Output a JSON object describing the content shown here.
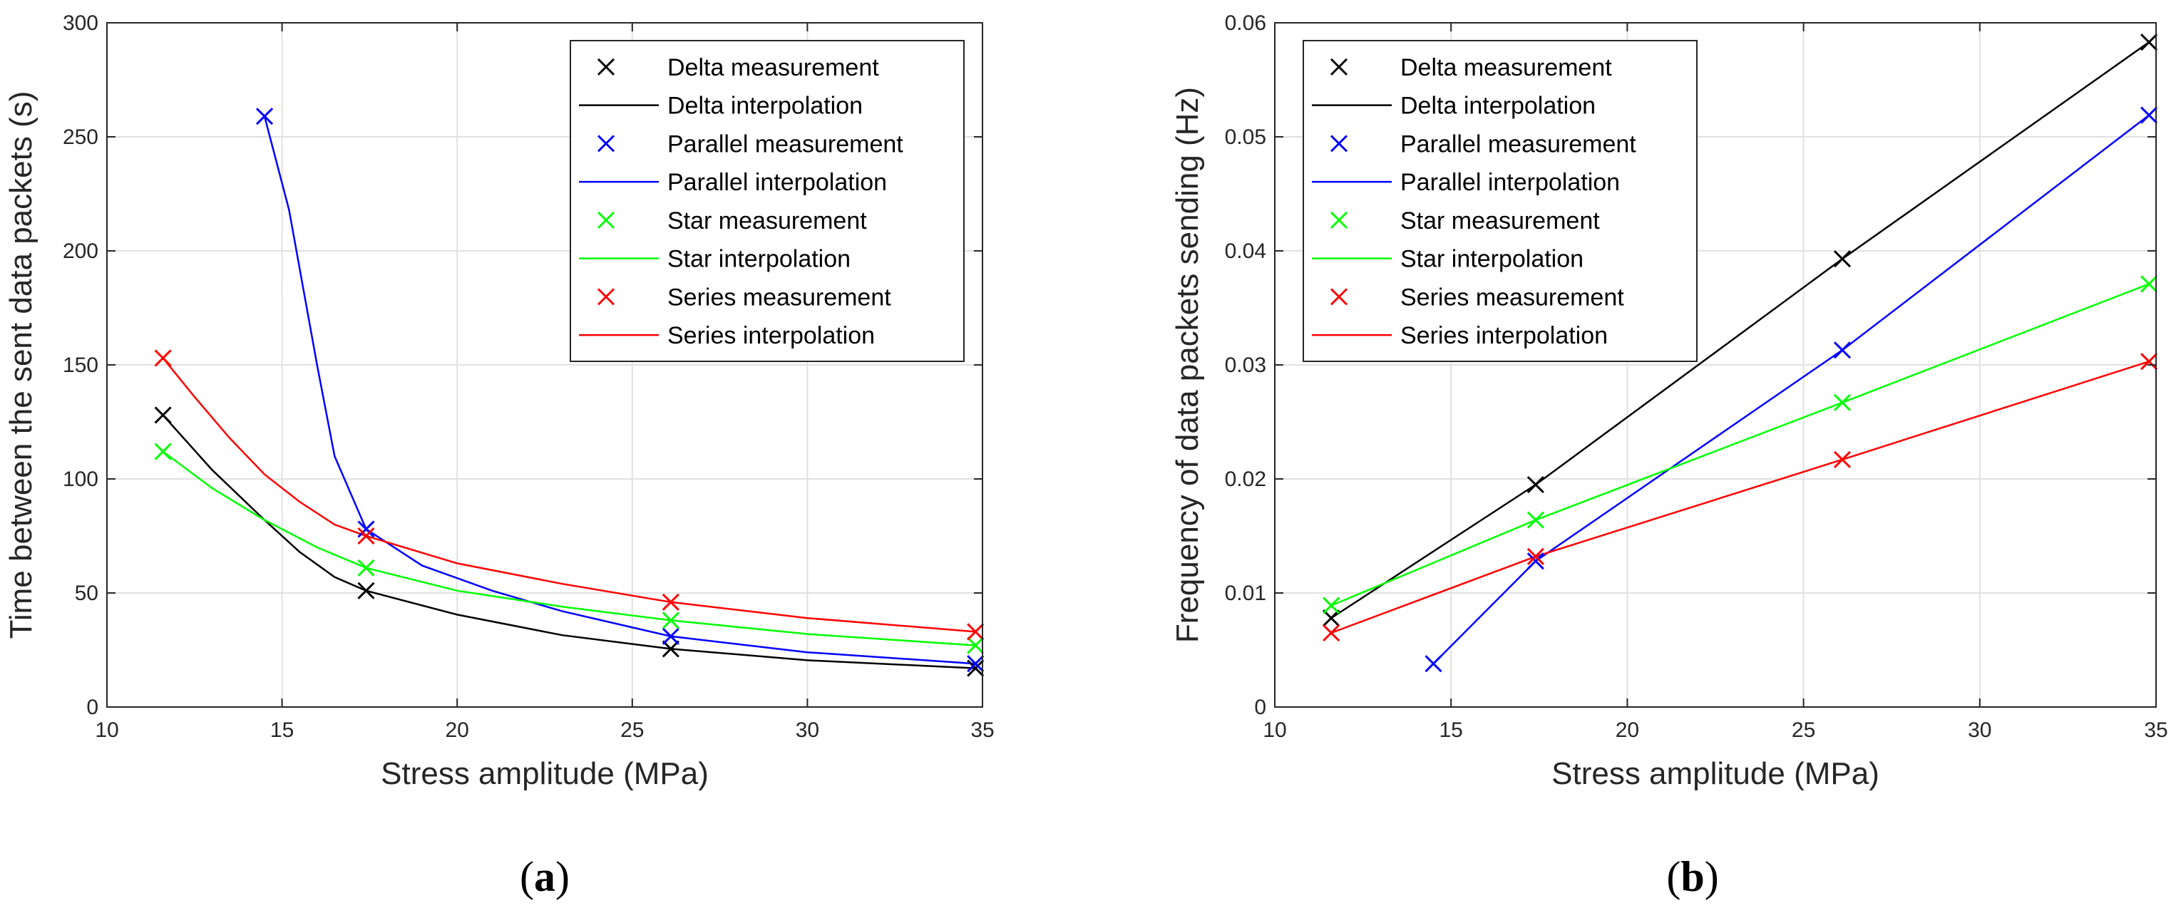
{
  "chart_data": [
    {
      "type": "line",
      "caption_open": "(",
      "caption_letter": "a",
      "caption_close": ")",
      "xlabel": "Stress amplitude (MPa)",
      "ylabel": "Time between the sent data packets (s)",
      "xlim": [
        10,
        35
      ],
      "ylim": [
        0,
        300
      ],
      "xticks": [
        10,
        15,
        20,
        25,
        30,
        35
      ],
      "yticks": [
        0,
        50,
        100,
        150,
        200,
        250,
        300
      ],
      "grid": true,
      "legend_position": "top-right",
      "series": [
        {
          "name": "Delta measurement",
          "kind": "measurement",
          "color": "#000000",
          "x": [
            11.6,
            17.4,
            26.1,
            34.8
          ],
          "y": [
            128,
            51,
            25.5,
            17
          ]
        },
        {
          "name": "Delta interpolation",
          "kind": "interpolation",
          "color": "#000000",
          "x": [
            11.6,
            13,
            14.5,
            15.5,
            16.5,
            17.4,
            20,
            23,
            26.1,
            30,
            34.8
          ],
          "y": [
            128,
            104,
            82,
            68,
            57,
            51,
            40.5,
            31.5,
            25.5,
            20.5,
            17
          ]
        },
        {
          "name": "Parallel measurement",
          "kind": "measurement",
          "color": "#0000ff",
          "x": [
            14.5,
            17.4,
            26.1,
            34.8
          ],
          "y": [
            259,
            78,
            31,
            19
          ]
        },
        {
          "name": "Parallel interpolation",
          "kind": "interpolation",
          "color": "#0000ff",
          "x": [
            14.5,
            15.2,
            16,
            16.5,
            17.4,
            19,
            21,
            23,
            26.1,
            30,
            34.8
          ],
          "y": [
            259,
            218,
            150,
            110,
            78,
            62,
            51,
            42,
            31,
            24,
            19
          ]
        },
        {
          "name": "Star measurement",
          "kind": "measurement",
          "color": "#00ff00",
          "x": [
            11.6,
            17.4,
            26.1,
            34.8
          ],
          "y": [
            112,
            61,
            38,
            27
          ]
        },
        {
          "name": "Star interpolation",
          "kind": "interpolation",
          "color": "#00ff00",
          "x": [
            11.6,
            13,
            14.5,
            16,
            17.4,
            20,
            23,
            26.1,
            30,
            34.8
          ],
          "y": [
            112,
            96,
            82,
            70,
            61,
            51,
            44,
            38,
            32,
            27
          ]
        },
        {
          "name": "Series measurement",
          "kind": "measurement",
          "color": "#ff0000",
          "x": [
            11.6,
            17.4,
            26.1,
            34.8
          ],
          "y": [
            153,
            75,
            46,
            33
          ]
        },
        {
          "name": "Series interpolation",
          "kind": "interpolation",
          "color": "#ff0000",
          "x": [
            11.6,
            12.5,
            13.5,
            14.5,
            15.5,
            16.5,
            17.4,
            20,
            23,
            26.1,
            30,
            34.8
          ],
          "y": [
            153,
            136,
            118,
            102,
            90,
            80,
            75,
            63,
            54,
            46,
            39,
            33
          ]
        }
      ]
    },
    {
      "type": "line",
      "caption_open": "(",
      "caption_letter": "b",
      "caption_close": ")",
      "xlabel": "Stress amplitude (MPa)",
      "ylabel": "Frequency of data packets sending (Hz)",
      "xlim": [
        10,
        35
      ],
      "ylim": [
        0,
        0.06
      ],
      "xticks": [
        10,
        15,
        20,
        25,
        30,
        35
      ],
      "yticks": [
        0,
        0.01,
        0.02,
        0.03,
        0.04,
        0.05,
        0.06
      ],
      "ytick_labels": [
        "0",
        "0.01",
        "0.02",
        "0.03",
        "0.04",
        "0.05",
        "0.06"
      ],
      "grid": true,
      "legend_position": "top-left",
      "series": [
        {
          "name": "Delta measurement",
          "kind": "measurement",
          "color": "#000000",
          "x": [
            11.6,
            17.4,
            26.1,
            34.8
          ],
          "y": [
            0.0078,
            0.0195,
            0.0393,
            0.0583
          ]
        },
        {
          "name": "Delta interpolation",
          "kind": "interpolation",
          "color": "#000000",
          "x": [
            11.6,
            17.4,
            26.1,
            34.8
          ],
          "y": [
            0.0078,
            0.0195,
            0.0393,
            0.0583
          ]
        },
        {
          "name": "Parallel measurement",
          "kind": "measurement",
          "color": "#0000ff",
          "x": [
            14.5,
            17.4,
            26.1,
            34.8
          ],
          "y": [
            0.0038,
            0.0128,
            0.0313,
            0.0519
          ]
        },
        {
          "name": "Parallel interpolation",
          "kind": "interpolation",
          "color": "#0000ff",
          "x": [
            14.5,
            17.4,
            26.1,
            34.8
          ],
          "y": [
            0.0038,
            0.0128,
            0.0313,
            0.0519
          ]
        },
        {
          "name": "Star measurement",
          "kind": "measurement",
          "color": "#00ff00",
          "x": [
            11.6,
            17.4,
            26.1,
            34.8
          ],
          "y": [
            0.0089,
            0.0164,
            0.0267,
            0.0371
          ]
        },
        {
          "name": "Star interpolation",
          "kind": "interpolation",
          "color": "#00ff00",
          "x": [
            11.6,
            17.4,
            26.1,
            34.8
          ],
          "y": [
            0.0089,
            0.0164,
            0.0267,
            0.0371
          ]
        },
        {
          "name": "Series measurement",
          "kind": "measurement",
          "color": "#ff0000",
          "x": [
            11.6,
            17.4,
            26.1,
            34.8
          ],
          "y": [
            0.0065,
            0.0132,
            0.0217,
            0.0303
          ]
        },
        {
          "name": "Series interpolation",
          "kind": "interpolation",
          "color": "#ff0000",
          "x": [
            11.6,
            17.4,
            26.1,
            34.8
          ],
          "y": [
            0.0065,
            0.0132,
            0.0217,
            0.0303
          ]
        }
      ]
    }
  ]
}
